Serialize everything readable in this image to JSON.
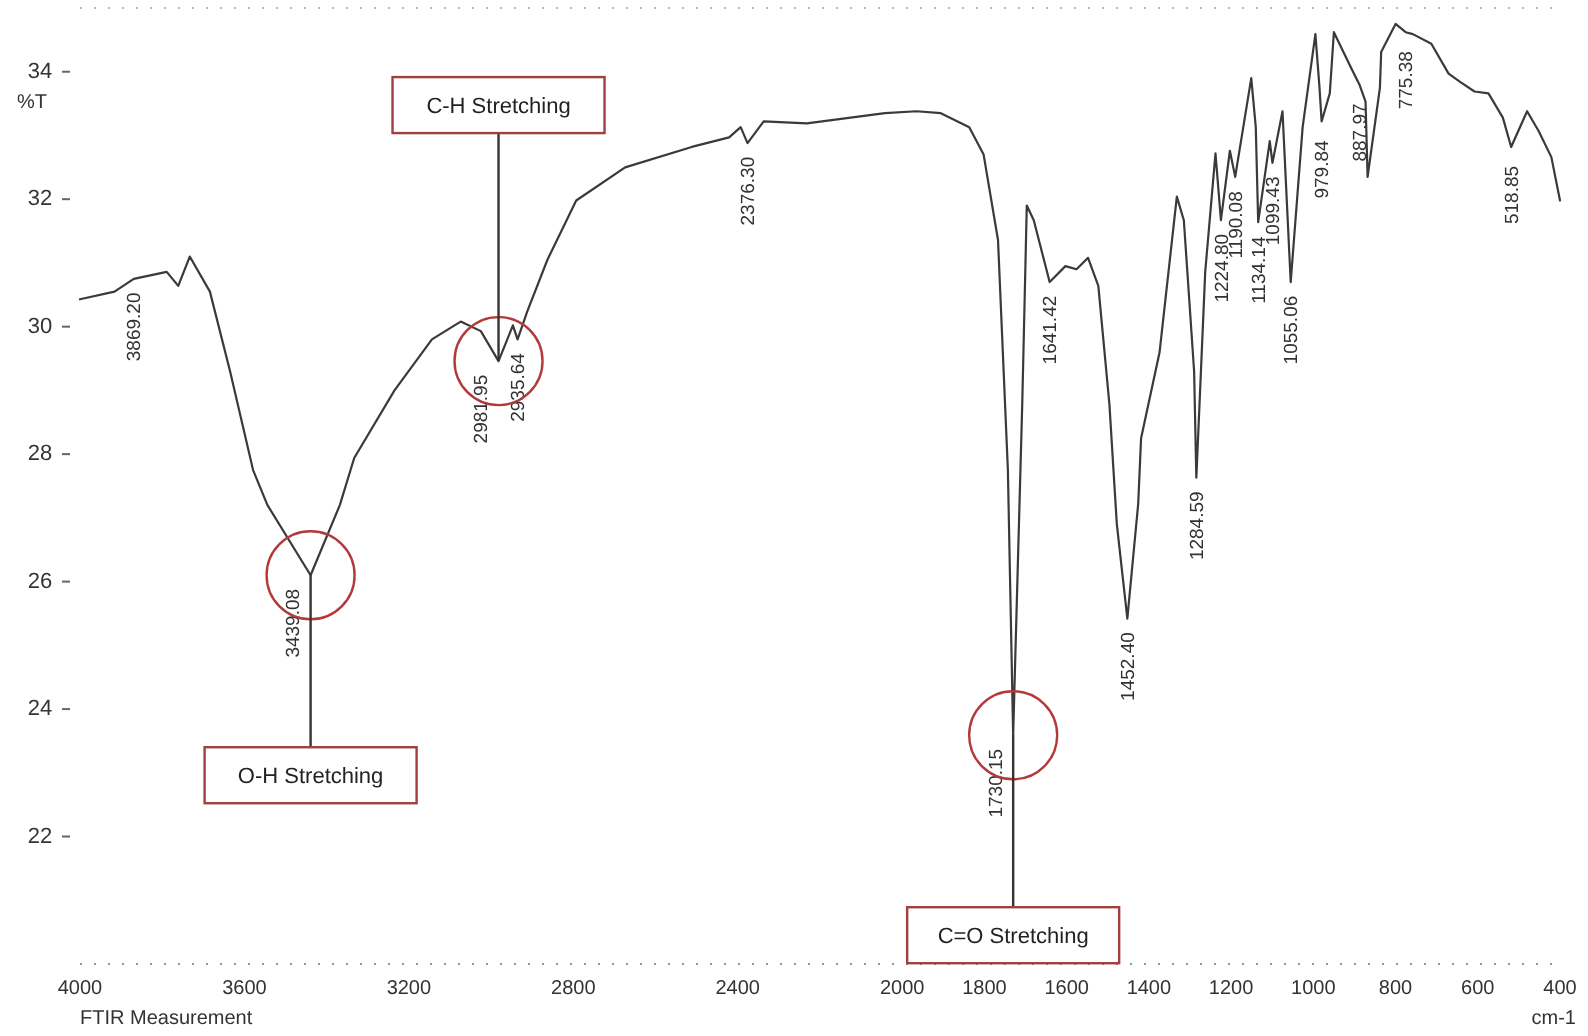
{
  "chart_data": {
    "type": "line",
    "title": "FTIR Measurement",
    "xlabel": "cm-1",
    "ylabel": "%T",
    "xlim": [
      4000,
      400
    ],
    "xticks": [
      4000,
      3600,
      3200,
      2800,
      2400,
      2000,
      1800,
      1600,
      1400,
      1200,
      1000,
      800,
      600,
      400
    ],
    "ylim": [
      20,
      35
    ],
    "yticks": [
      22,
      24,
      26,
      28,
      30,
      32,
      34
    ],
    "grid": false,
    "marker": "none",
    "line_style": "solid",
    "series": [
      {
        "color": "#3a3a3a",
        "x": [
          4000,
          3916,
          3869.2,
          3789,
          3761,
          3733,
          3684,
          3635,
          3579,
          3544,
          3439.08,
          3368,
          3333,
          3235,
          3144,
          3074,
          3025,
          2981.95,
          2947,
          2935.64,
          2912,
          2863,
          2793,
          2674,
          2512,
          2421,
          2393,
          2376.3,
          2337,
          2232,
          2042,
          1965,
          1906,
          1837,
          1802,
          1767,
          1743,
          1730.15,
          1708,
          1697,
          1680,
          1641.42,
          1603,
          1576,
          1548,
          1523,
          1496,
          1478,
          1452.4,
          1426,
          1419,
          1374,
          1332,
          1315,
          1290,
          1284.59,
          1263,
          1238,
          1224.8,
          1203,
          1190.08,
          1151,
          1140,
          1134.14,
          1106,
          1099.43,
          1075,
          1055.06,
          1026,
          995,
          985,
          979.84,
          960,
          950,
          908,
          887.97,
          873,
          868,
          838,
          835,
          800,
          775.38,
          758,
          713,
          671,
          643,
          608,
          574,
          539,
          518.85,
          480,
          452,
          421,
          400
        ],
        "values": [
          30.43,
          30.55,
          30.75,
          30.86,
          30.64,
          31.1,
          30.55,
          29.3,
          27.75,
          27.2,
          26.1,
          27.2,
          27.94,
          29.0,
          29.8,
          30.08,
          29.93,
          29.46,
          30.02,
          29.8,
          30.24,
          31.05,
          31.98,
          32.5,
          32.82,
          32.97,
          33.13,
          32.88,
          33.22,
          33.19,
          33.35,
          33.38,
          33.35,
          33.13,
          32.7,
          31.36,
          27.75,
          23.59,
          28.8,
          31.9,
          31.67,
          30.7,
          30.95,
          30.9,
          31.08,
          30.64,
          28.78,
          26.9,
          25.42,
          27.22,
          28.25,
          29.6,
          32.04,
          31.67,
          29.3,
          27.63,
          30.86,
          32.72,
          31.67,
          32.76,
          32.35,
          33.9,
          33.13,
          31.64,
          32.91,
          32.57,
          33.38,
          30.7,
          33.13,
          34.59,
          33.75,
          33.22,
          33.66,
          34.62,
          34.06,
          33.8,
          33.53,
          32.35,
          33.75,
          34.31,
          34.75,
          34.62,
          34.59,
          34.44,
          33.97,
          33.84,
          33.69,
          33.66,
          33.28,
          32.82,
          33.38,
          33.07,
          32.66,
          31.98
        ]
      }
    ],
    "annotations": [
      {
        "text": "3869.20",
        "x": 3869.2,
        "y": 30.75
      },
      {
        "text": "3439.08",
        "x": 3439.08,
        "y": 26.1
      },
      {
        "text": "2981.95",
        "x": 2981.95,
        "y": 29.46
      },
      {
        "text": "2935.64",
        "x": 2935.64,
        "y": 29.8
      },
      {
        "text": "2376.30",
        "x": 2376.3,
        "y": 32.88
      },
      {
        "text": "1730.15",
        "x": 1730.15,
        "y": 23.59
      },
      {
        "text": "1641.42",
        "x": 1641.42,
        "y": 30.7
      },
      {
        "text": "1452.40",
        "x": 1452.4,
        "y": 25.42
      },
      {
        "text": "1284.59",
        "x": 1284.59,
        "y": 27.63
      },
      {
        "text": "1224.80",
        "x": 1224.8,
        "y": 31.67
      },
      {
        "text": "1190.08",
        "x": 1190.08,
        "y": 32.35
      },
      {
        "text": "1134.14",
        "x": 1134.14,
        "y": 31.64
      },
      {
        "text": "1099.43",
        "x": 1099.43,
        "y": 32.57
      },
      {
        "text": "1055.06",
        "x": 1055.06,
        "y": 30.7
      },
      {
        "text": "979.84",
        "x": 979.84,
        "y": 33.22
      },
      {
        "text": "887.97",
        "x": 887.97,
        "y": 33.8
      },
      {
        "text": "775.38",
        "x": 775.38,
        "y": 34.62
      },
      {
        "text": "518.85",
        "x": 518.85,
        "y": 32.82
      },
      {
        "text": "C-H Stretching",
        "x": 2981.95,
        "y": 29.46
      },
      {
        "text": "O-H Stretching",
        "x": 3439.08,
        "y": 26.1
      },
      {
        "text": "C=O Stretching",
        "x": 1730.15,
        "y": 23.59
      }
    ]
  }
}
